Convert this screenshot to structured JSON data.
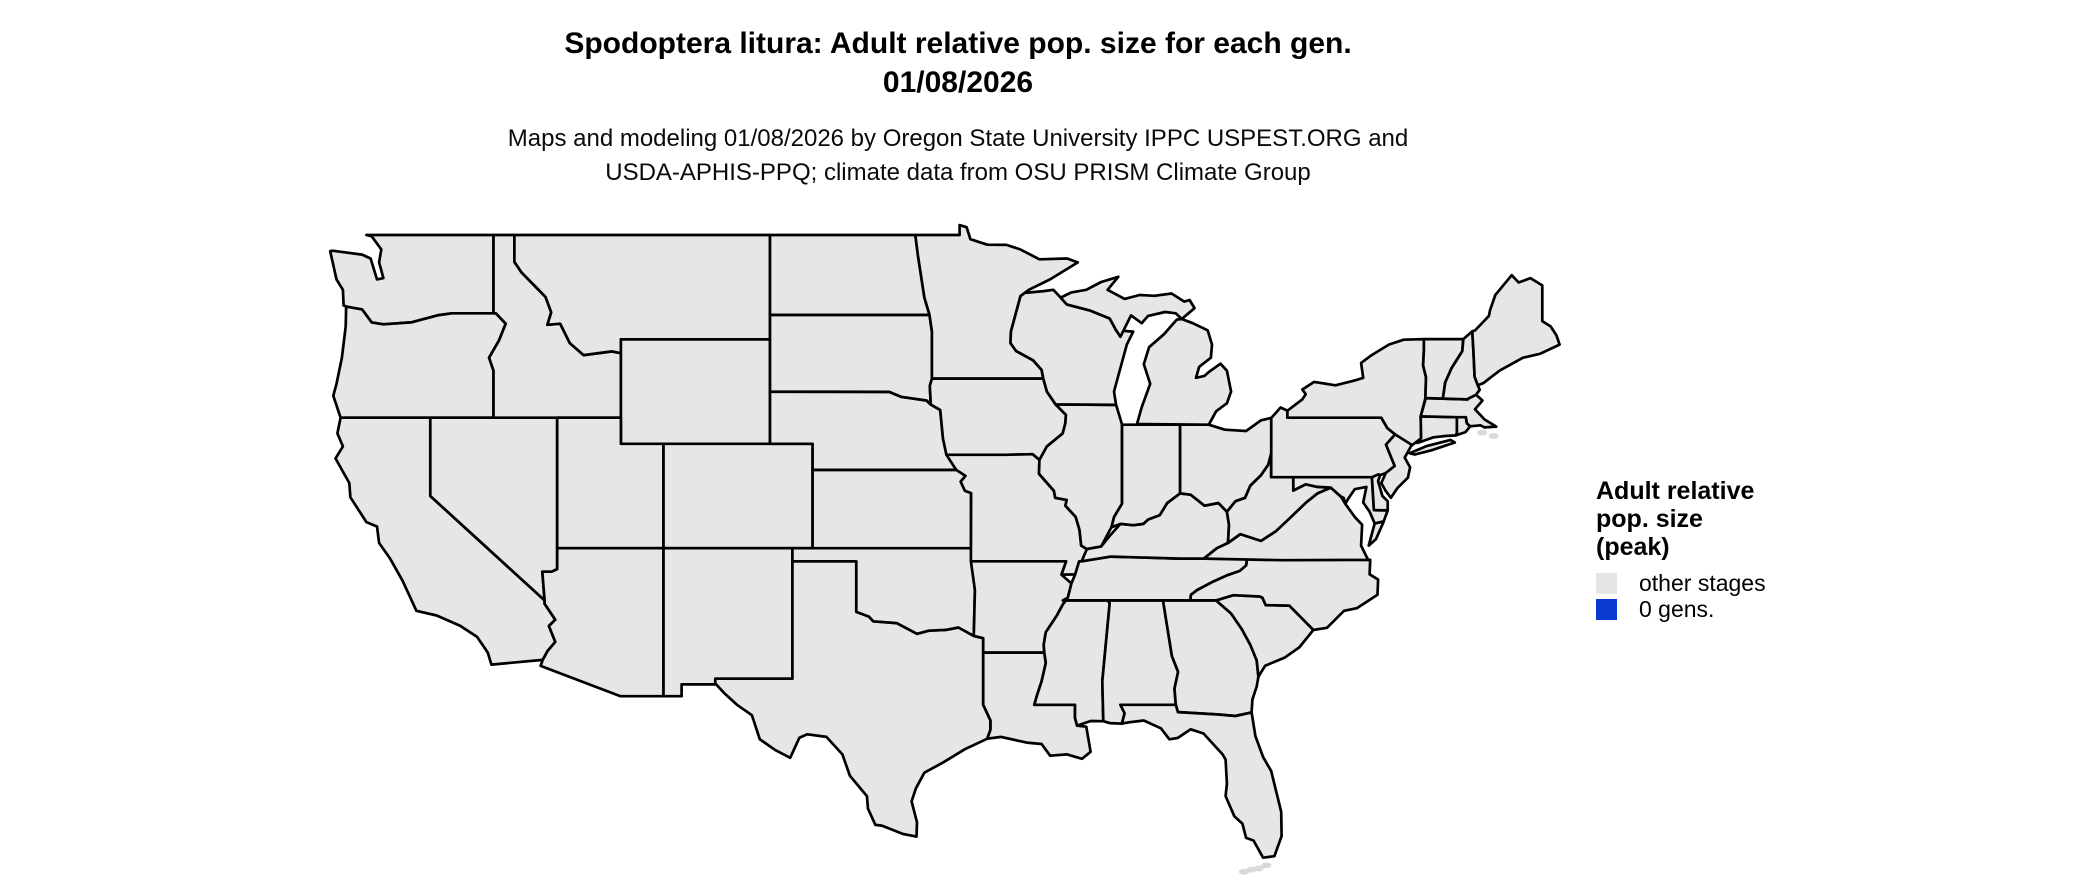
{
  "title": {
    "line1": "Spodoptera litura: Adult relative pop. size for each gen.",
    "line2": "01/08/2026"
  },
  "subtitle": {
    "line1": "Maps and modeling 01/08/2026 by Oregon State University IPPC USPEST.ORG and",
    "line2": "USDA-APHIS-PPQ; climate data from OSU PRISM Climate Group"
  },
  "legend": {
    "title_lines": [
      "Adult relative",
      "pop. size",
      "(peak)"
    ],
    "items": [
      {
        "label": "other stages",
        "color": "#E6E6E6"
      },
      {
        "label": "0 gens.",
        "color": "#0A3AD2"
      }
    ]
  },
  "map": {
    "region": "contiguous United States",
    "fill": "#E6E6E6",
    "border": "#000000",
    "island_fill": "#D9D9D9",
    "background": "#FFFFFF"
  }
}
